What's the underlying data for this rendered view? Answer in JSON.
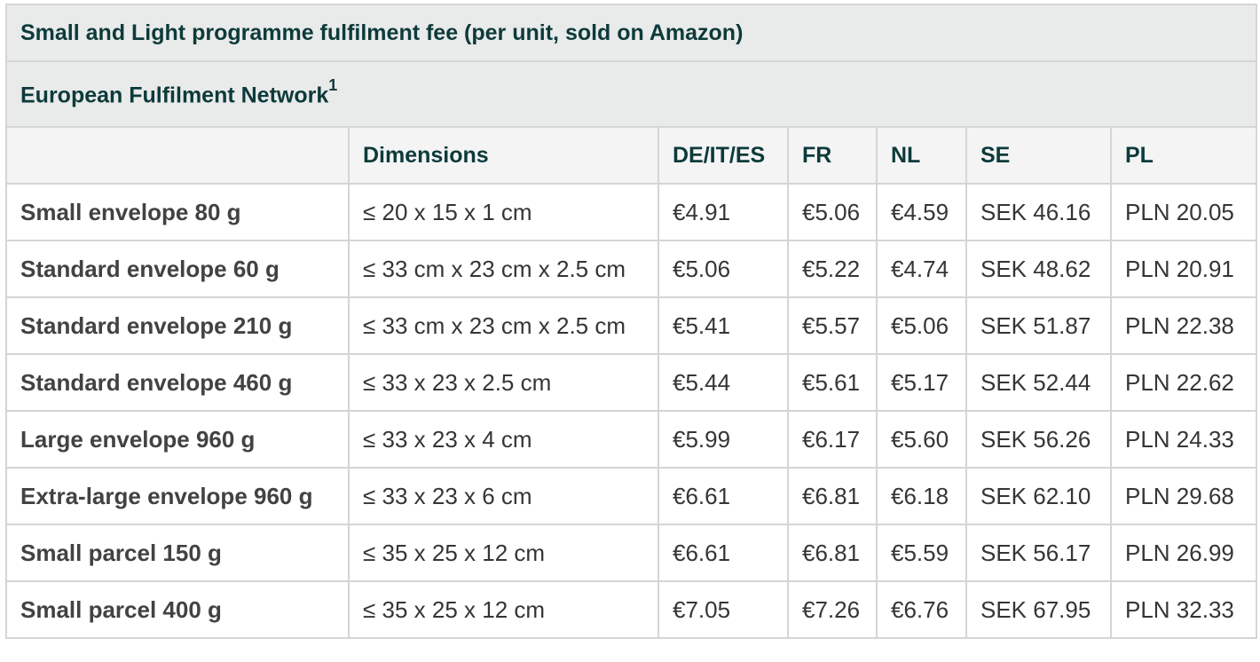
{
  "table": {
    "title": "Small and Light programme fulfilment fee (per unit, sold on Amazon)",
    "network_title": "European Fulfilment Network",
    "network_footnote": "1",
    "headers": [
      "",
      "Dimensions",
      "DE/IT/ES",
      "FR",
      "NL",
      "SE",
      "PL"
    ],
    "rows": [
      [
        "Small envelope 80 g",
        "≤ 20 x 15 x 1 cm",
        "€4.91",
        "€5.06",
        "€4.59",
        "SEK 46.16",
        "PLN 20.05"
      ],
      [
        "Standard envelope 60 g",
        "≤ 33 cm x 23 cm x 2.5 cm",
        "€5.06",
        "€5.22",
        "€4.74",
        "SEK 48.62",
        "PLN 20.91"
      ],
      [
        "Standard envelope 210 g",
        "≤ 33 cm x 23 cm x 2.5 cm",
        "€5.41",
        "€5.57",
        "€5.06",
        "SEK 51.87",
        "PLN 22.38"
      ],
      [
        "Standard envelope 460 g",
        "≤ 33 x 23 x 2.5 cm",
        "€5.44",
        "€5.61",
        "€5.17",
        "SEK 52.44",
        "PLN 22.62"
      ],
      [
        "Large envelope 960 g",
        "≤ 33 x 23 x 4 cm",
        "€5.99",
        "€6.17",
        "€5.60",
        "SEK 56.26",
        "PLN 24.33"
      ],
      [
        "Extra-large envelope 960 g",
        "≤ 33 x 23 x 6 cm",
        "€6.61",
        "€6.81",
        "€6.18",
        "SEK 62.10",
        "PLN 29.68"
      ],
      [
        "Small parcel 150 g",
        "≤ 35 x 25 x 12 cm",
        "€6.61",
        "€6.81",
        "€5.59",
        "SEK 56.17",
        "PLN 26.99"
      ],
      [
        "Small parcel 400 g",
        "≤ 35 x 25 x 12 cm",
        "€7.05",
        "€7.26",
        "€6.76",
        "SEK 67.95",
        "PLN 32.33"
      ]
    ]
  }
}
